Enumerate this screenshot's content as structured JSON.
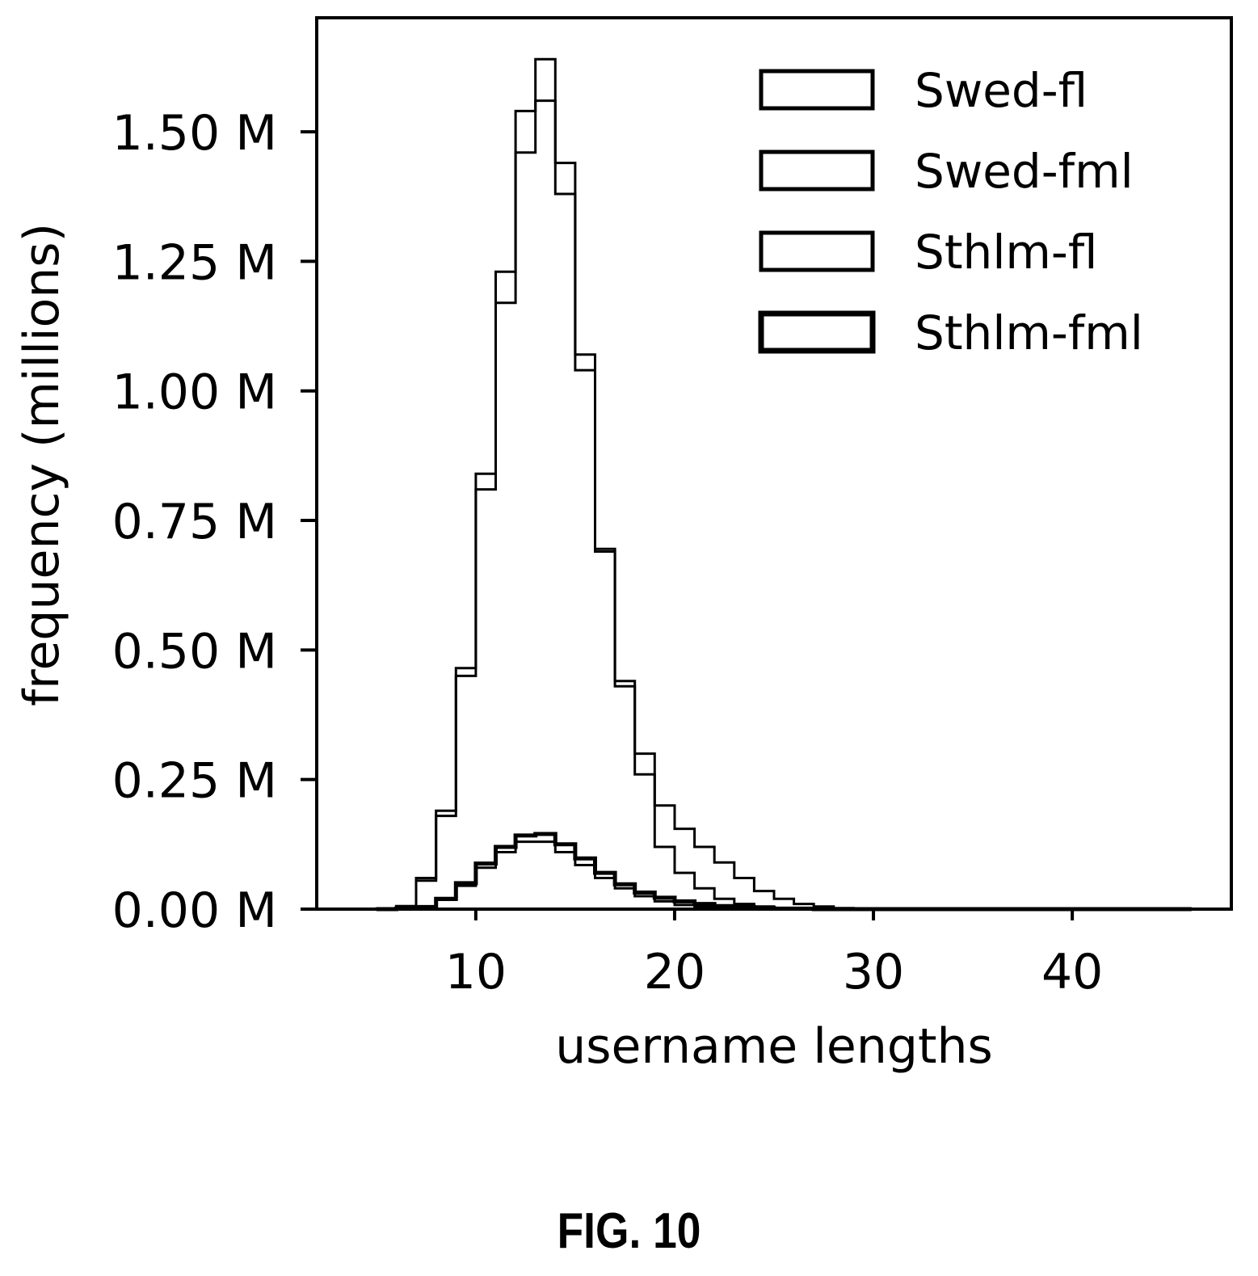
{
  "caption": "FIG. 10",
  "chart_data": {
    "type": "step-histogram",
    "xlabel": "username lengths",
    "ylabel": "frequency (millions)",
    "xlim": [
      2,
      48
    ],
    "ylim": [
      0,
      1.72
    ],
    "x_ticks": [
      10,
      20,
      30,
      40
    ],
    "x_tick_labels": [
      "10",
      "20",
      "30",
      "40"
    ],
    "y_ticks": [
      0,
      0.25,
      0.5,
      0.75,
      1.0,
      1.25,
      1.5
    ],
    "y_tick_labels": [
      "0.00 M",
      "0.25 M",
      "0.50 M",
      "0.75 M",
      "1.00 M",
      "1.25 M",
      "1.50 M"
    ],
    "y_unit": "millions",
    "grid": false,
    "legend_position": "top-right",
    "bin_edges": [
      5,
      6,
      7,
      8,
      9,
      10,
      11,
      12,
      13,
      14,
      15,
      16,
      17,
      18,
      19,
      20,
      21,
      22,
      23,
      24,
      25,
      26,
      27,
      28,
      29,
      30,
      31,
      32,
      33,
      34,
      35,
      36,
      37,
      38,
      39,
      40,
      41,
      42,
      43,
      44,
      45,
      46
    ],
    "series": [
      {
        "name": "Swed-fl",
        "stroke_width": 3,
        "values": [
          0.001,
          0.005,
          0.055,
          0.18,
          0.45,
          0.81,
          1.17,
          1.46,
          1.56,
          1.38,
          1.04,
          0.69,
          0.43,
          0.26,
          0.12,
          0.07,
          0.04,
          0.02,
          0.01,
          0.005,
          0.002,
          0.001,
          0.001,
          0,
          0,
          0,
          0,
          0,
          0,
          0,
          0,
          0,
          0,
          0,
          0,
          0,
          0,
          0,
          0,
          0,
          0
        ]
      },
      {
        "name": "Swed-fml",
        "stroke_width": 3,
        "values": [
          0.001,
          0.006,
          0.06,
          0.19,
          0.465,
          0.84,
          1.23,
          1.54,
          1.64,
          1.44,
          1.07,
          0.695,
          0.44,
          0.3,
          0.2,
          0.155,
          0.12,
          0.09,
          0.06,
          0.035,
          0.02,
          0.01,
          0.005,
          0.002,
          0.001,
          0.001,
          0,
          0,
          0,
          0,
          0,
          0,
          0,
          0,
          0,
          0,
          0,
          0,
          0,
          0,
          0
        ]
      },
      {
        "name": "Sthlm-fl",
        "stroke_width": 3,
        "values": [
          0,
          0.001,
          0.004,
          0.018,
          0.045,
          0.08,
          0.11,
          0.13,
          0.13,
          0.11,
          0.085,
          0.06,
          0.04,
          0.025,
          0.015,
          0.008,
          0.004,
          0.002,
          0.001,
          0,
          0,
          0,
          0,
          0,
          0,
          0,
          0,
          0,
          0,
          0,
          0,
          0,
          0,
          0,
          0,
          0,
          0,
          0,
          0,
          0,
          0
        ]
      },
      {
        "name": "Sthlm-fml",
        "stroke_width": 5,
        "values": [
          0,
          0.001,
          0.004,
          0.02,
          0.05,
          0.088,
          0.12,
          0.142,
          0.145,
          0.125,
          0.098,
          0.07,
          0.048,
          0.032,
          0.022,
          0.015,
          0.01,
          0.006,
          0.004,
          0.002,
          0.001,
          0.001,
          0,
          0,
          0,
          0,
          0,
          0,
          0,
          0,
          0,
          0,
          0,
          0,
          0,
          0,
          0,
          0,
          0,
          0,
          0
        ]
      }
    ]
  }
}
